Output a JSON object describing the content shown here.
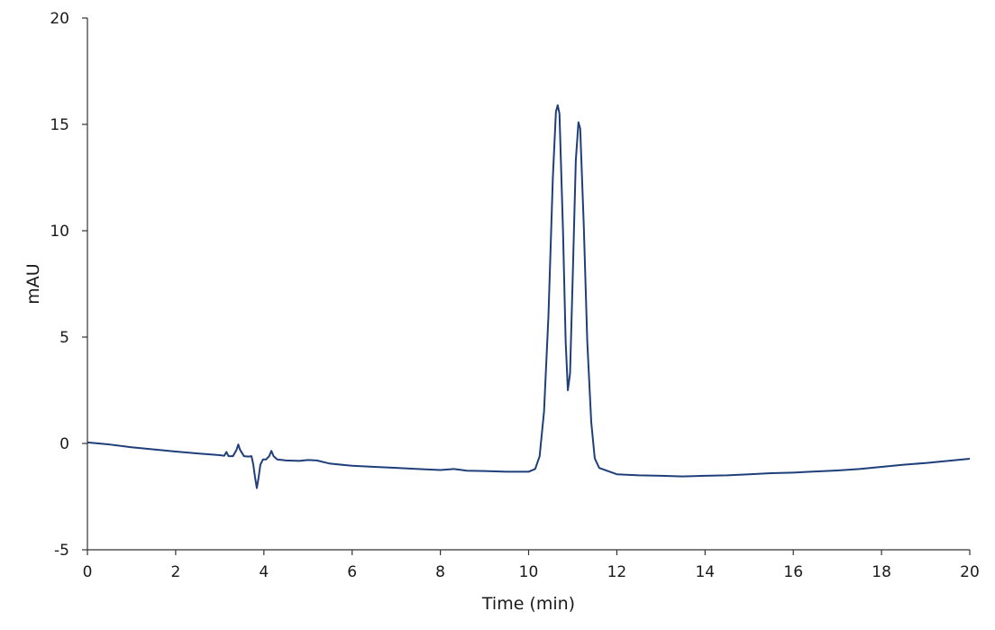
{
  "chart_data": {
    "type": "line",
    "title": "",
    "xlabel": "Time (min)",
    "ylabel": "mAU",
    "xlim": [
      0,
      20
    ],
    "ylim": [
      -5,
      20
    ],
    "x_ticks": [
      0,
      2,
      4,
      6,
      8,
      10,
      12,
      14,
      16,
      18,
      20
    ],
    "y_ticks": [
      -5,
      0,
      5,
      10,
      15,
      20
    ],
    "x_tick_labels": [
      "0",
      "2",
      "4",
      "6",
      "8",
      "10",
      "12",
      "14",
      "16",
      "18",
      "20"
    ],
    "y_tick_labels": [
      "-5",
      "0",
      "5",
      "10",
      "15",
      "20"
    ],
    "grid": false,
    "legend": "none",
    "series_color": "#1f3f7a",
    "series": [
      {
        "points": [
          [
            0.0,
            0.05
          ],
          [
            0.5,
            -0.05
          ],
          [
            1.0,
            -0.18
          ],
          [
            1.5,
            -0.28
          ],
          [
            2.0,
            -0.38
          ],
          [
            2.5,
            -0.47
          ],
          [
            3.0,
            -0.55
          ],
          [
            3.1,
            -0.58
          ],
          [
            3.15,
            -0.4
          ],
          [
            3.2,
            -0.6
          ],
          [
            3.3,
            -0.6
          ],
          [
            3.38,
            -0.3
          ],
          [
            3.42,
            -0.05
          ],
          [
            3.46,
            -0.3
          ],
          [
            3.55,
            -0.6
          ],
          [
            3.65,
            -0.62
          ],
          [
            3.72,
            -0.6
          ],
          [
            3.76,
            -1.0
          ],
          [
            3.8,
            -1.6
          ],
          [
            3.84,
            -2.1
          ],
          [
            3.88,
            -1.6
          ],
          [
            3.92,
            -1.0
          ],
          [
            3.98,
            -0.75
          ],
          [
            4.05,
            -0.75
          ],
          [
            4.12,
            -0.6
          ],
          [
            4.17,
            -0.35
          ],
          [
            4.22,
            -0.6
          ],
          [
            4.3,
            -0.75
          ],
          [
            4.5,
            -0.8
          ],
          [
            4.8,
            -0.82
          ],
          [
            5.0,
            -0.78
          ],
          [
            5.2,
            -0.8
          ],
          [
            5.5,
            -0.95
          ],
          [
            6.0,
            -1.05
          ],
          [
            6.5,
            -1.1
          ],
          [
            7.0,
            -1.15
          ],
          [
            7.5,
            -1.2
          ],
          [
            8.0,
            -1.25
          ],
          [
            8.3,
            -1.2
          ],
          [
            8.6,
            -1.28
          ],
          [
            9.0,
            -1.3
          ],
          [
            9.5,
            -1.33
          ],
          [
            10.0,
            -1.33
          ],
          [
            10.15,
            -1.2
          ],
          [
            10.25,
            -0.6
          ],
          [
            10.35,
            1.5
          ],
          [
            10.45,
            6.0
          ],
          [
            10.55,
            12.5
          ],
          [
            10.62,
            15.6
          ],
          [
            10.66,
            15.9
          ],
          [
            10.7,
            15.5
          ],
          [
            10.78,
            10.0
          ],
          [
            10.84,
            4.8
          ],
          [
            10.89,
            2.5
          ],
          [
            10.94,
            3.3
          ],
          [
            11.0,
            7.8
          ],
          [
            11.07,
            13.3
          ],
          [
            11.13,
            15.1
          ],
          [
            11.17,
            14.8
          ],
          [
            11.25,
            10.3
          ],
          [
            11.33,
            4.8
          ],
          [
            11.42,
            1.0
          ],
          [
            11.5,
            -0.7
          ],
          [
            11.6,
            -1.15
          ],
          [
            11.8,
            -1.3
          ],
          [
            12.0,
            -1.45
          ],
          [
            12.5,
            -1.5
          ],
          [
            13.0,
            -1.52
          ],
          [
            13.5,
            -1.55
          ],
          [
            14.0,
            -1.52
          ],
          [
            14.5,
            -1.5
          ],
          [
            15.0,
            -1.45
          ],
          [
            15.5,
            -1.4
          ],
          [
            16.0,
            -1.37
          ],
          [
            16.5,
            -1.32
          ],
          [
            17.0,
            -1.27
          ],
          [
            17.5,
            -1.2
          ],
          [
            18.0,
            -1.1
          ],
          [
            18.5,
            -1.0
          ],
          [
            19.0,
            -0.92
          ],
          [
            19.5,
            -0.82
          ],
          [
            20.0,
            -0.72
          ]
        ]
      }
    ]
  }
}
